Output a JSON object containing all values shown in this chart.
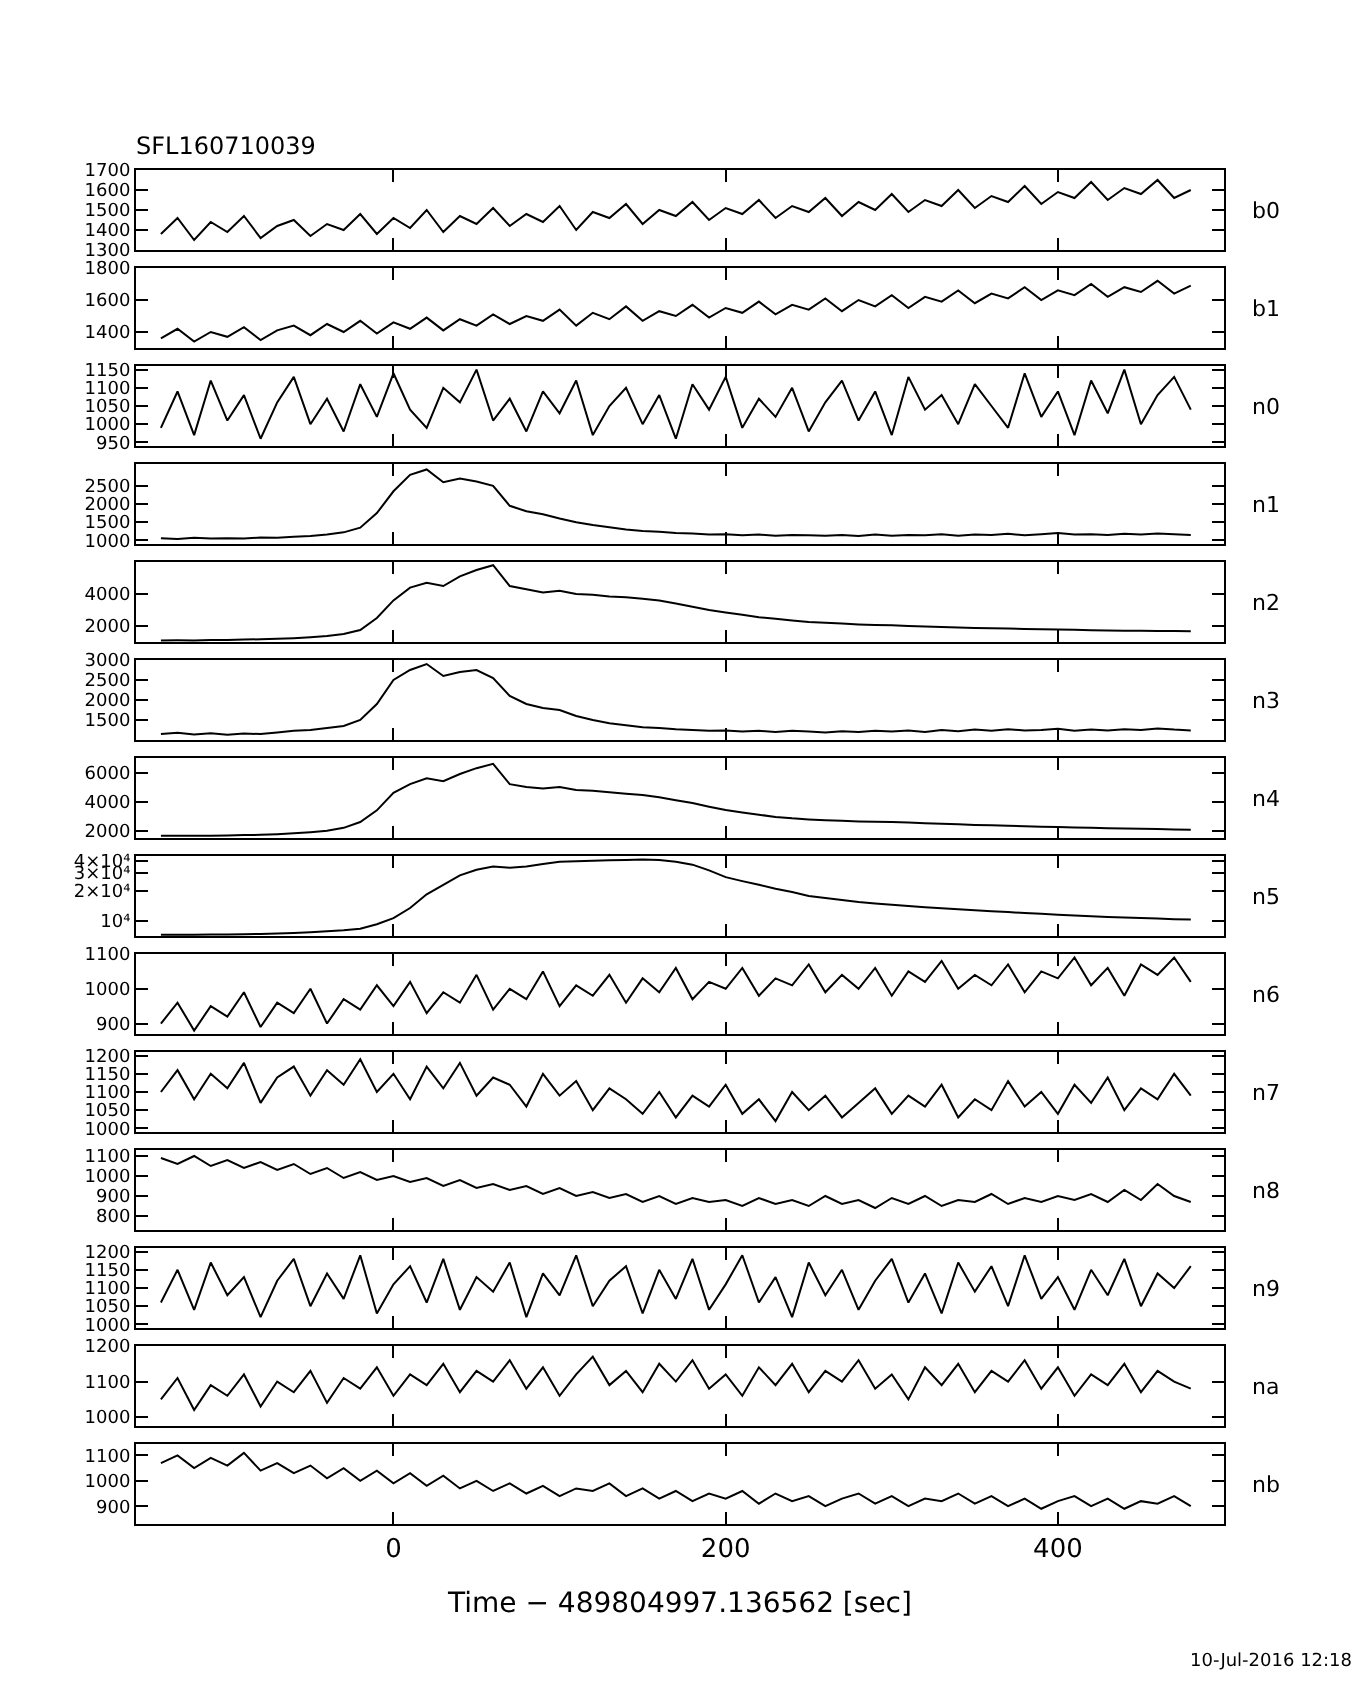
{
  "chart_data": [
    {
      "type": "line",
      "title": "SFL160710039",
      "ylabel": "b0",
      "color": "#000000",
      "tick_labels": "y",
      "xlim": [
        -155,
        500
      ],
      "xticks": [
        0,
        200,
        400
      ],
      "ylim": [
        1300,
        1700
      ],
      "yticks": [
        1300,
        1400,
        1500,
        1600,
        1700
      ],
      "x": [
        -140,
        -130,
        -120,
        -110,
        -100,
        -90,
        -80,
        -70,
        -60,
        -50,
        -40,
        -30,
        -20,
        -10,
        0,
        10,
        20,
        30,
        40,
        50,
        60,
        70,
        80,
        90,
        100,
        110,
        120,
        130,
        140,
        150,
        160,
        170,
        180,
        190,
        200,
        210,
        220,
        230,
        240,
        250,
        260,
        270,
        280,
        290,
        300,
        310,
        320,
        330,
        340,
        350,
        360,
        370,
        380,
        390,
        400,
        410,
        420,
        430,
        440,
        450,
        460,
        470,
        480
      ],
      "values": [
        1380,
        1460,
        1350,
        1440,
        1390,
        1470,
        1360,
        1420,
        1450,
        1370,
        1430,
        1400,
        1480,
        1380,
        1460,
        1410,
        1500,
        1390,
        1470,
        1430,
        1510,
        1420,
        1480,
        1440,
        1520,
        1400,
        1490,
        1460,
        1530,
        1430,
        1500,
        1470,
        1540,
        1450,
        1510,
        1480,
        1550,
        1460,
        1520,
        1490,
        1560,
        1470,
        1540,
        1500,
        1580,
        1490,
        1550,
        1520,
        1600,
        1510,
        1570,
        1540,
        1620,
        1530,
        1590,
        1560,
        1640,
        1550,
        1610,
        1580,
        1650,
        1560,
        1600
      ]
    },
    {
      "type": "line",
      "ylabel": "b1",
      "color": "#000000",
      "tick_labels": "y",
      "xlim": [
        -155,
        500
      ],
      "xticks": [
        0,
        200,
        400
      ],
      "ylim": [
        1300,
        1800
      ],
      "yticks": [
        1400,
        1600,
        1800
      ],
      "x": [
        -140,
        -130,
        -120,
        -110,
        -100,
        -90,
        -80,
        -70,
        -60,
        -50,
        -40,
        -30,
        -20,
        -10,
        0,
        10,
        20,
        30,
        40,
        50,
        60,
        70,
        80,
        90,
        100,
        110,
        120,
        130,
        140,
        150,
        160,
        170,
        180,
        190,
        200,
        210,
        220,
        230,
        240,
        250,
        260,
        270,
        280,
        290,
        300,
        310,
        320,
        330,
        340,
        350,
        360,
        370,
        380,
        390,
        400,
        410,
        420,
        430,
        440,
        450,
        460,
        470,
        480
      ],
      "values": [
        1360,
        1420,
        1340,
        1400,
        1370,
        1430,
        1350,
        1410,
        1440,
        1380,
        1450,
        1400,
        1470,
        1390,
        1460,
        1420,
        1490,
        1410,
        1480,
        1440,
        1510,
        1450,
        1500,
        1470,
        1540,
        1440,
        1520,
        1480,
        1560,
        1470,
        1530,
        1500,
        1570,
        1490,
        1550,
        1520,
        1590,
        1510,
        1570,
        1540,
        1610,
        1530,
        1600,
        1560,
        1630,
        1550,
        1620,
        1590,
        1660,
        1580,
        1640,
        1610,
        1680,
        1600,
        1660,
        1630,
        1700,
        1620,
        1680,
        1650,
        1720,
        1640,
        1690
      ]
    },
    {
      "type": "line",
      "ylabel": "n0",
      "color": "#000000",
      "tick_labels": "y",
      "xlim": [
        -155,
        500
      ],
      "xticks": [
        0,
        200,
        400
      ],
      "ylim": [
        940,
        1160
      ],
      "yticks": [
        950,
        1000,
        1050,
        1100,
        1150
      ],
      "x": [
        -140,
        -130,
        -120,
        -110,
        -100,
        -90,
        -80,
        -70,
        -60,
        -50,
        -40,
        -30,
        -20,
        -10,
        0,
        10,
        20,
        30,
        40,
        50,
        60,
        70,
        80,
        90,
        100,
        110,
        120,
        130,
        140,
        150,
        160,
        170,
        180,
        190,
        200,
        210,
        220,
        230,
        240,
        250,
        260,
        270,
        280,
        290,
        300,
        310,
        320,
        330,
        340,
        350,
        360,
        370,
        380,
        390,
        400,
        410,
        420,
        430,
        440,
        450,
        460,
        470,
        480
      ],
      "values": [
        990,
        1090,
        970,
        1120,
        1010,
        1080,
        960,
        1060,
        1130,
        1000,
        1070,
        980,
        1110,
        1020,
        1140,
        1040,
        990,
        1100,
        1060,
        1150,
        1010,
        1070,
        980,
        1090,
        1030,
        1120,
        970,
        1050,
        1100,
        1000,
        1080,
        960,
        1110,
        1040,
        1130,
        990,
        1070,
        1020,
        1100,
        980,
        1060,
        1120,
        1010,
        1090,
        970,
        1130,
        1040,
        1080,
        1000,
        1110,
        1050,
        990,
        1140,
        1020,
        1090,
        970,
        1120,
        1030,
        1150,
        1000,
        1080,
        1130,
        1040
      ]
    },
    {
      "type": "line",
      "ylabel": "n1",
      "color": "#000000",
      "tick_labels": "y",
      "xlim": [
        -155,
        500
      ],
      "xticks": [
        0,
        200,
        400
      ],
      "ylim": [
        900,
        3100
      ],
      "yticks": [
        1000,
        1500,
        2000,
        2500
      ],
      "x": [
        -140,
        -130,
        -120,
        -110,
        -100,
        -90,
        -80,
        -70,
        -60,
        -50,
        -40,
        -30,
        -20,
        -10,
        0,
        10,
        20,
        30,
        40,
        50,
        60,
        70,
        80,
        90,
        100,
        110,
        120,
        130,
        140,
        150,
        160,
        170,
        180,
        190,
        200,
        210,
        220,
        230,
        240,
        250,
        260,
        270,
        280,
        290,
        300,
        310,
        320,
        330,
        340,
        350,
        360,
        370,
        380,
        390,
        400,
        410,
        420,
        430,
        440,
        450,
        460,
        470,
        480
      ],
      "values": [
        1060,
        1040,
        1070,
        1050,
        1060,
        1050,
        1080,
        1070,
        1100,
        1120,
        1160,
        1220,
        1350,
        1750,
        2350,
        2800,
        2950,
        2600,
        2700,
        2620,
        2500,
        1950,
        1800,
        1720,
        1600,
        1500,
        1420,
        1360,
        1300,
        1260,
        1240,
        1200,
        1190,
        1160,
        1170,
        1140,
        1160,
        1130,
        1150,
        1140,
        1130,
        1150,
        1120,
        1160,
        1130,
        1150,
        1140,
        1170,
        1130,
        1160,
        1150,
        1180,
        1140,
        1170,
        1200,
        1160,
        1170,
        1150,
        1180,
        1160,
        1190,
        1170,
        1150
      ]
    },
    {
      "type": "line",
      "ylabel": "n2",
      "color": "#000000",
      "tick_labels": "y",
      "xlim": [
        -155,
        500
      ],
      "xticks": [
        0,
        200,
        400
      ],
      "ylim": [
        1000,
        6000
      ],
      "yticks": [
        2000,
        4000
      ],
      "x": [
        -140,
        -130,
        -120,
        -110,
        -100,
        -90,
        -80,
        -70,
        -60,
        -50,
        -40,
        -30,
        -20,
        -10,
        0,
        10,
        20,
        30,
        40,
        50,
        60,
        70,
        80,
        90,
        100,
        110,
        120,
        130,
        140,
        150,
        160,
        170,
        180,
        190,
        200,
        210,
        220,
        230,
        240,
        250,
        260,
        270,
        280,
        290,
        300,
        310,
        320,
        330,
        340,
        350,
        360,
        370,
        380,
        390,
        400,
        410,
        420,
        430,
        440,
        450,
        460,
        470,
        480
      ],
      "values": [
        1100,
        1110,
        1100,
        1120,
        1130,
        1150,
        1170,
        1200,
        1240,
        1300,
        1380,
        1500,
        1750,
        2500,
        3600,
        4400,
        4700,
        4500,
        5100,
        5500,
        5800,
        4500,
        4300,
        4100,
        4200,
        4000,
        3950,
        3850,
        3800,
        3700,
        3600,
        3400,
        3200,
        3000,
        2850,
        2700,
        2550,
        2450,
        2350,
        2250,
        2200,
        2150,
        2100,
        2070,
        2040,
        2000,
        1970,
        1940,
        1910,
        1880,
        1860,
        1840,
        1820,
        1800,
        1780,
        1760,
        1740,
        1720,
        1710,
        1700,
        1690,
        1680,
        1670
      ]
    },
    {
      "type": "line",
      "ylabel": "n3",
      "color": "#000000",
      "tick_labels": "y",
      "xlim": [
        -155,
        500
      ],
      "xticks": [
        0,
        200,
        400
      ],
      "ylim": [
        1000,
        3000
      ],
      "yticks": [
        1500,
        2000,
        2500,
        3000
      ],
      "x": [
        -140,
        -130,
        -120,
        -110,
        -100,
        -90,
        -80,
        -70,
        -60,
        -50,
        -40,
        -30,
        -20,
        -10,
        0,
        10,
        20,
        30,
        40,
        50,
        60,
        70,
        80,
        90,
        100,
        110,
        120,
        130,
        140,
        150,
        160,
        170,
        180,
        190,
        200,
        210,
        220,
        230,
        240,
        250,
        260,
        270,
        280,
        290,
        300,
        310,
        320,
        330,
        340,
        350,
        360,
        370,
        380,
        390,
        400,
        410,
        420,
        430,
        440,
        450,
        460,
        470,
        480
      ],
      "values": [
        1150,
        1180,
        1140,
        1170,
        1130,
        1160,
        1150,
        1190,
        1230,
        1250,
        1300,
        1350,
        1500,
        1900,
        2500,
        2750,
        2900,
        2600,
        2700,
        2750,
        2550,
        2100,
        1900,
        1800,
        1750,
        1600,
        1500,
        1420,
        1370,
        1320,
        1300,
        1270,
        1250,
        1230,
        1240,
        1210,
        1230,
        1200,
        1230,
        1210,
        1190,
        1220,
        1200,
        1230,
        1210,
        1240,
        1200,
        1250,
        1220,
        1260,
        1230,
        1270,
        1240,
        1250,
        1280,
        1230,
        1260,
        1240,
        1270,
        1250,
        1290,
        1260,
        1240
      ]
    },
    {
      "type": "line",
      "ylabel": "n4",
      "color": "#000000",
      "tick_labels": "y",
      "xlim": [
        -155,
        500
      ],
      "xticks": [
        0,
        200,
        400
      ],
      "ylim": [
        1500,
        7000
      ],
      "yticks": [
        2000,
        4000,
        6000
      ],
      "x": [
        -140,
        -130,
        -120,
        -110,
        -100,
        -90,
        -80,
        -70,
        -60,
        -50,
        -40,
        -30,
        -20,
        -10,
        0,
        10,
        20,
        30,
        40,
        50,
        60,
        70,
        80,
        90,
        100,
        110,
        120,
        130,
        140,
        150,
        160,
        170,
        180,
        190,
        200,
        210,
        220,
        230,
        240,
        250,
        260,
        270,
        280,
        290,
        300,
        310,
        320,
        330,
        340,
        350,
        360,
        370,
        380,
        390,
        400,
        410,
        420,
        430,
        440,
        450,
        460,
        470,
        480
      ],
      "values": [
        1650,
        1660,
        1650,
        1660,
        1680,
        1700,
        1720,
        1760,
        1820,
        1900,
        2000,
        2200,
        2600,
        3400,
        4600,
        5200,
        5600,
        5400,
        5900,
        6300,
        6600,
        5200,
        5000,
        4900,
        5000,
        4800,
        4750,
        4650,
        4550,
        4450,
        4300,
        4100,
        3900,
        3650,
        3420,
        3250,
        3100,
        2950,
        2850,
        2780,
        2720,
        2680,
        2640,
        2620,
        2600,
        2560,
        2520,
        2480,
        2440,
        2400,
        2370,
        2340,
        2310,
        2280,
        2250,
        2220,
        2200,
        2170,
        2150,
        2130,
        2110,
        2090,
        2075
      ]
    },
    {
      "type": "line",
      "ylabel": "n5",
      "color": "#000000",
      "tick_labels": "y",
      "log": "y",
      "xlim": [
        -155,
        500
      ],
      "xticks": [
        0,
        200,
        400
      ],
      "ylim": [
        7100,
        44500
      ],
      "yticks": [
        {
          "value": 10000,
          "label": "10⁴"
        },
        {
          "value": 20000,
          "label": "2×10⁴"
        },
        {
          "value": 30000,
          "label": "3×10⁴"
        },
        {
          "value": 40000,
          "label": "4×10⁴"
        }
      ],
      "x": [
        -140,
        -130,
        -120,
        -110,
        -100,
        -90,
        -80,
        -70,
        -60,
        -50,
        -40,
        -30,
        -20,
        -10,
        0,
        10,
        20,
        30,
        40,
        50,
        60,
        70,
        80,
        90,
        100,
        110,
        120,
        130,
        140,
        150,
        160,
        170,
        180,
        190,
        200,
        210,
        220,
        230,
        240,
        250,
        260,
        270,
        280,
        290,
        300,
        310,
        320,
        330,
        340,
        350,
        360,
        370,
        380,
        390,
        400,
        410,
        420,
        430,
        440,
        450,
        460,
        470,
        480
      ],
      "values": [
        7300,
        7300,
        7300,
        7350,
        7350,
        7400,
        7450,
        7500,
        7600,
        7750,
        7900,
        8100,
        8400,
        9300,
        10700,
        13500,
        18500,
        23000,
        28500,
        32500,
        34900,
        34000,
        35000,
        37000,
        38900,
        39500,
        40000,
        40300,
        40600,
        41000,
        40500,
        39000,
        36500,
        32000,
        27400,
        25000,
        23000,
        21000,
        19500,
        17800,
        17000,
        16200,
        15500,
        15000,
        14550,
        14100,
        13700,
        13400,
        13100,
        12800,
        12500,
        12300,
        12000,
        11800,
        11540,
        11350,
        11150,
        11000,
        10850,
        10700,
        10600,
        10450,
        10360
      ]
    },
    {
      "type": "line",
      "ylabel": "n6",
      "color": "#000000",
      "tick_labels": "y",
      "xlim": [
        -155,
        500
      ],
      "xticks": [
        0,
        200,
        400
      ],
      "ylim": [
        870,
        1100
      ],
      "yticks": [
        900,
        1000,
        1100
      ],
      "x": [
        -140,
        -130,
        -120,
        -110,
        -100,
        -90,
        -80,
        -70,
        -60,
        -50,
        -40,
        -30,
        -20,
        -10,
        0,
        10,
        20,
        30,
        40,
        50,
        60,
        70,
        80,
        90,
        100,
        110,
        120,
        130,
        140,
        150,
        160,
        170,
        180,
        190,
        200,
        210,
        220,
        230,
        240,
        250,
        260,
        270,
        280,
        290,
        300,
        310,
        320,
        330,
        340,
        350,
        360,
        370,
        380,
        390,
        400,
        410,
        420,
        430,
        440,
        450,
        460,
        470,
        480
      ],
      "values": [
        900,
        960,
        880,
        950,
        920,
        990,
        890,
        960,
        930,
        1000,
        900,
        970,
        940,
        1010,
        950,
        1020,
        930,
        990,
        960,
        1040,
        940,
        1000,
        970,
        1050,
        950,
        1010,
        980,
        1040,
        960,
        1030,
        990,
        1060,
        970,
        1020,
        1000,
        1060,
        980,
        1030,
        1010,
        1070,
        990,
        1040,
        1000,
        1060,
        980,
        1050,
        1020,
        1080,
        1000,
        1040,
        1010,
        1070,
        990,
        1050,
        1030,
        1090,
        1010,
        1060,
        980,
        1070,
        1040,
        1090,
        1020
      ]
    },
    {
      "type": "line",
      "ylabel": "n7",
      "color": "#000000",
      "tick_labels": "y",
      "xlim": [
        -155,
        500
      ],
      "xticks": [
        0,
        200,
        400
      ],
      "ylim": [
        990,
        1210
      ],
      "yticks": [
        1000,
        1050,
        1100,
        1150,
        1200
      ],
      "x": [
        -140,
        -130,
        -120,
        -110,
        -100,
        -90,
        -80,
        -70,
        -60,
        -50,
        -40,
        -30,
        -20,
        -10,
        0,
        10,
        20,
        30,
        40,
        50,
        60,
        70,
        80,
        90,
        100,
        110,
        120,
        130,
        140,
        150,
        160,
        170,
        180,
        190,
        200,
        210,
        220,
        230,
        240,
        250,
        260,
        270,
        280,
        290,
        300,
        310,
        320,
        330,
        340,
        350,
        360,
        370,
        380,
        390,
        400,
        410,
        420,
        430,
        440,
        450,
        460,
        470,
        480
      ],
      "values": [
        1100,
        1160,
        1080,
        1150,
        1110,
        1180,
        1070,
        1140,
        1170,
        1090,
        1160,
        1120,
        1190,
        1100,
        1150,
        1080,
        1170,
        1110,
        1180,
        1090,
        1140,
        1120,
        1060,
        1150,
        1090,
        1130,
        1050,
        1110,
        1080,
        1040,
        1100,
        1030,
        1090,
        1060,
        1120,
        1040,
        1080,
        1020,
        1100,
        1050,
        1090,
        1030,
        1070,
        1110,
        1040,
        1090,
        1060,
        1120,
        1030,
        1080,
        1050,
        1130,
        1060,
        1100,
        1040,
        1120,
        1070,
        1140,
        1050,
        1110,
        1080,
        1150,
        1090
      ]
    },
    {
      "type": "line",
      "ylabel": "n8",
      "color": "#000000",
      "tick_labels": "y",
      "xlim": [
        -155,
        500
      ],
      "xticks": [
        0,
        200,
        400
      ],
      "ylim": [
        730,
        1130
      ],
      "yticks": [
        800,
        900,
        1000,
        1100
      ],
      "x": [
        -140,
        -130,
        -120,
        -110,
        -100,
        -90,
        -80,
        -70,
        -60,
        -50,
        -40,
        -30,
        -20,
        -10,
        0,
        10,
        20,
        30,
        40,
        50,
        60,
        70,
        80,
        90,
        100,
        110,
        120,
        130,
        140,
        150,
        160,
        170,
        180,
        190,
        200,
        210,
        220,
        230,
        240,
        250,
        260,
        270,
        280,
        290,
        300,
        310,
        320,
        330,
        340,
        350,
        360,
        370,
        380,
        390,
        400,
        410,
        420,
        430,
        440,
        450,
        460,
        470,
        480
      ],
      "values": [
        1090,
        1060,
        1100,
        1050,
        1080,
        1040,
        1070,
        1030,
        1060,
        1010,
        1040,
        990,
        1020,
        980,
        1000,
        970,
        990,
        950,
        980,
        940,
        960,
        930,
        950,
        910,
        940,
        900,
        920,
        890,
        910,
        870,
        900,
        860,
        890,
        870,
        880,
        850,
        890,
        860,
        880,
        850,
        900,
        860,
        880,
        840,
        890,
        860,
        900,
        850,
        880,
        870,
        910,
        860,
        890,
        870,
        900,
        880,
        910,
        870,
        930,
        880,
        960,
        900,
        870
      ]
    },
    {
      "type": "line",
      "ylabel": "n9",
      "color": "#000000",
      "tick_labels": "y",
      "xlim": [
        -155,
        500
      ],
      "xticks": [
        0,
        200,
        400
      ],
      "ylim": [
        990,
        1210
      ],
      "yticks": [
        1000,
        1050,
        1100,
        1150,
        1200
      ],
      "x": [
        -140,
        -130,
        -120,
        -110,
        -100,
        -90,
        -80,
        -70,
        -60,
        -50,
        -40,
        -30,
        -20,
        -10,
        0,
        10,
        20,
        30,
        40,
        50,
        60,
        70,
        80,
        90,
        100,
        110,
        120,
        130,
        140,
        150,
        160,
        170,
        180,
        190,
        200,
        210,
        220,
        230,
        240,
        250,
        260,
        270,
        280,
        290,
        300,
        310,
        320,
        330,
        340,
        350,
        360,
        370,
        380,
        390,
        400,
        410,
        420,
        430,
        440,
        450,
        460,
        470,
        480
      ],
      "values": [
        1060,
        1150,
        1040,
        1170,
        1080,
        1130,
        1020,
        1120,
        1180,
        1050,
        1140,
        1070,
        1190,
        1030,
        1110,
        1160,
        1060,
        1180,
        1040,
        1130,
        1090,
        1170,
        1020,
        1140,
        1080,
        1190,
        1050,
        1120,
        1160,
        1030,
        1150,
        1070,
        1180,
        1040,
        1110,
        1190,
        1060,
        1130,
        1020,
        1170,
        1080,
        1150,
        1040,
        1120,
        1180,
        1060,
        1140,
        1030,
        1170,
        1090,
        1160,
        1050,
        1190,
        1070,
        1130,
        1040,
        1150,
        1080,
        1180,
        1050,
        1140,
        1100,
        1160
      ]
    },
    {
      "type": "line",
      "ylabel": "na",
      "color": "#000000",
      "tick_labels": "y",
      "xlim": [
        -155,
        500
      ],
      "xticks": [
        0,
        200,
        400
      ],
      "ylim": [
        975,
        1200
      ],
      "yticks": [
        1000,
        1100,
        1200
      ],
      "x": [
        -140,
        -130,
        -120,
        -110,
        -100,
        -90,
        -80,
        -70,
        -60,
        -50,
        -40,
        -30,
        -20,
        -10,
        0,
        10,
        20,
        30,
        40,
        50,
        60,
        70,
        80,
        90,
        100,
        110,
        120,
        130,
        140,
        150,
        160,
        170,
        180,
        190,
        200,
        210,
        220,
        230,
        240,
        250,
        260,
        270,
        280,
        290,
        300,
        310,
        320,
        330,
        340,
        350,
        360,
        370,
        380,
        390,
        400,
        410,
        420,
        430,
        440,
        450,
        460,
        470,
        480
      ],
      "values": [
        1050,
        1110,
        1020,
        1090,
        1060,
        1120,
        1030,
        1100,
        1070,
        1130,
        1040,
        1110,
        1080,
        1140,
        1060,
        1120,
        1090,
        1150,
        1070,
        1130,
        1100,
        1160,
        1080,
        1140,
        1060,
        1120,
        1170,
        1090,
        1130,
        1070,
        1150,
        1100,
        1160,
        1080,
        1120,
        1060,
        1140,
        1090,
        1150,
        1070,
        1130,
        1100,
        1160,
        1080,
        1120,
        1050,
        1140,
        1090,
        1150,
        1070,
        1130,
        1100,
        1160,
        1080,
        1140,
        1060,
        1120,
        1090,
        1150,
        1070,
        1130,
        1100,
        1080
      ]
    },
    {
      "type": "line",
      "ylabel": "nb",
      "color": "#000000",
      "xlabel": "Time − 489804997.136562 [sec]",
      "annotations": [
        "10-Jul-2016 12:18"
      ],
      "xlim": [
        -155,
        500
      ],
      "xticks": [
        0,
        200,
        400
      ],
      "ylim": [
        830,
        1145
      ],
      "yticks": [
        900,
        1000,
        1100
      ],
      "x": [
        -140,
        -130,
        -120,
        -110,
        -100,
        -90,
        -80,
        -70,
        -60,
        -50,
        -40,
        -30,
        -20,
        -10,
        0,
        10,
        20,
        30,
        40,
        50,
        60,
        70,
        80,
        90,
        100,
        110,
        120,
        130,
        140,
        150,
        160,
        170,
        180,
        190,
        200,
        210,
        220,
        230,
        240,
        250,
        260,
        270,
        280,
        290,
        300,
        310,
        320,
        330,
        340,
        350,
        360,
        370,
        380,
        390,
        400,
        410,
        420,
        430,
        440,
        450,
        460,
        470,
        480
      ],
      "values": [
        1070,
        1100,
        1050,
        1090,
        1060,
        1110,
        1040,
        1070,
        1030,
        1060,
        1010,
        1050,
        1000,
        1040,
        990,
        1030,
        980,
        1020,
        970,
        1000,
        960,
        990,
        950,
        980,
        940,
        970,
        960,
        990,
        940,
        970,
        930,
        960,
        920,
        950,
        930,
        960,
        910,
        950,
        920,
        940,
        900,
        930,
        950,
        910,
        940,
        900,
        930,
        920,
        950,
        910,
        940,
        900,
        930,
        890,
        920,
        940,
        900,
        930,
        890,
        920,
        910,
        940,
        900
      ]
    }
  ]
}
